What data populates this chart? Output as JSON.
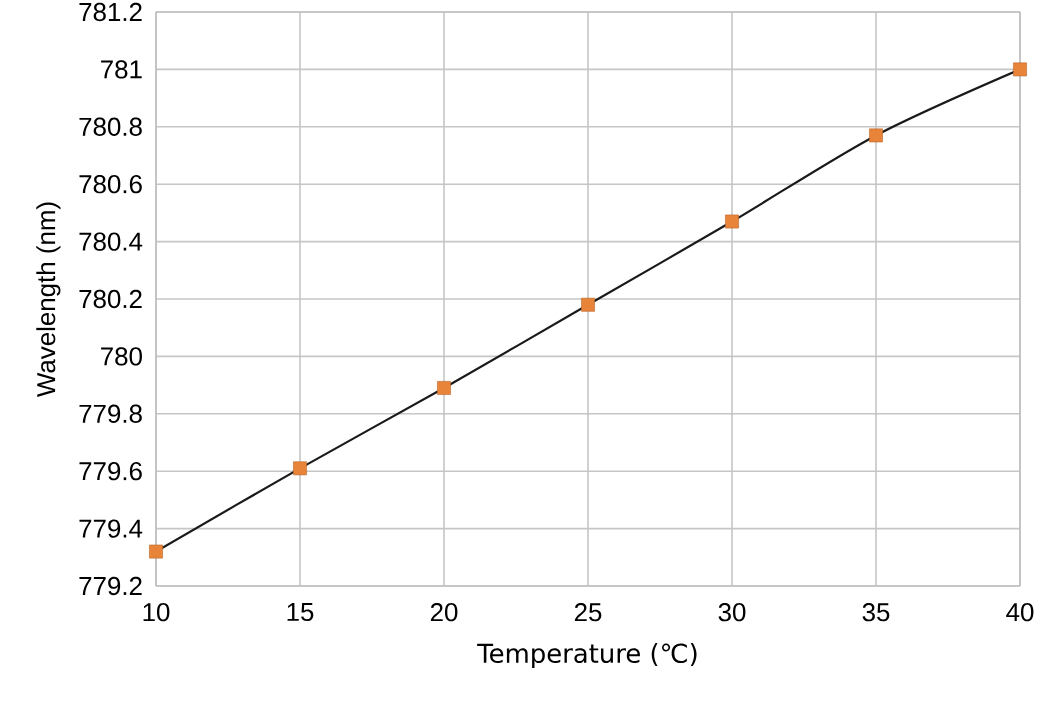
{
  "chart_data": {
    "type": "line",
    "xlabel": "Temperature (℃)",
    "ylabel": "Wavelength (nm)",
    "x": [
      10,
      15,
      20,
      25,
      30,
      35,
      40
    ],
    "series": [
      {
        "color": "#1a1a1a",
        "marker": "none",
        "values": [
          779.32,
          779.61,
          779.89,
          780.18,
          780.47,
          780.77,
          781.0
        ]
      },
      {
        "type": "scatter",
        "color": "#e8833a",
        "marker": "square",
        "values": [
          779.32,
          779.61,
          779.89,
          780.18,
          780.47,
          780.77,
          781.0
        ]
      }
    ],
    "xlim": [
      10,
      40
    ],
    "xticks": [
      10,
      15,
      20,
      25,
      30,
      35,
      40
    ],
    "ylim": [
      779.2,
      781.2
    ],
    "yticks": [
      779.2,
      779.4,
      779.6,
      779.8,
      780,
      780.2,
      780.4,
      780.6,
      780.8,
      781,
      781.2
    ],
    "grid": true
  }
}
